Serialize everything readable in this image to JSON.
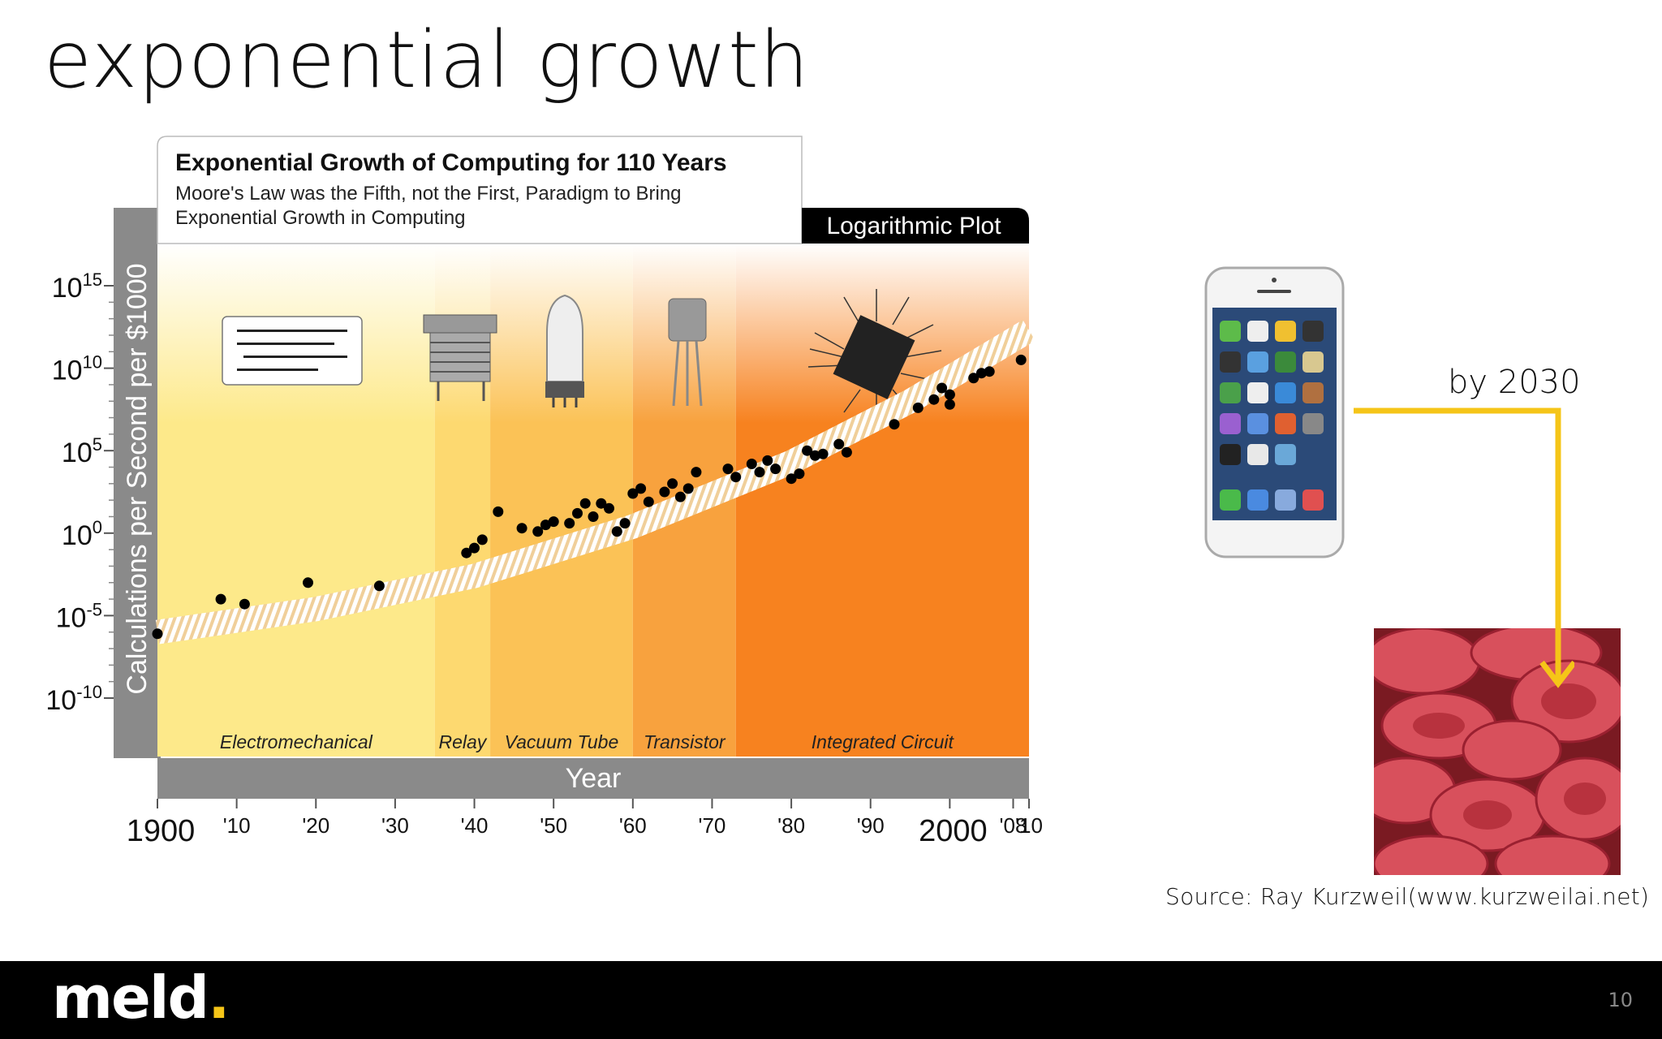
{
  "slide": {
    "title": "exponential growth",
    "page_number": "10",
    "logo": {
      "text": "meld",
      "dot": "."
    },
    "annotation": "by 2030",
    "source": "Source: Ray Kurzweil(www.kurzweilai.net)",
    "colors": {
      "accent": "#f5c518",
      "footer": "#000000",
      "axis_band": "#8a8a8a"
    }
  },
  "chart_data": {
    "type": "scatter",
    "title": "Exponential Growth of Computing for 110 Years",
    "subtitle_lines": [
      "Moore's Law was the Fifth, not the First, Paradigm to Bring",
      "Exponential Growth in Computing"
    ],
    "badge": "Logarithmic Plot",
    "ylabel": "Calculations per Second per $1000",
    "xlabel": "Year",
    "yscale": "log",
    "ylim_exponent": [
      -10,
      15
    ],
    "xlim": [
      1900,
      2010
    ],
    "y_ticks": [
      {
        "base": "10",
        "exp": "15",
        "v": 15
      },
      {
        "base": "10",
        "exp": "10",
        "v": 10
      },
      {
        "base": "10",
        "exp": "5",
        "v": 5
      },
      {
        "base": "10",
        "exp": "0",
        "v": 0
      },
      {
        "base": "10",
        "exp": "-5",
        "v": -5
      },
      {
        "base": "10",
        "exp": "-10",
        "v": -10
      }
    ],
    "x_ticks": [
      {
        "label": "1900",
        "v": 1900,
        "big": true
      },
      {
        "label": "'10",
        "v": 1910
      },
      {
        "label": "'20",
        "v": 1920
      },
      {
        "label": "'30",
        "v": 1930
      },
      {
        "label": "'40",
        "v": 1940
      },
      {
        "label": "'50",
        "v": 1950
      },
      {
        "label": "'60",
        "v": 1960
      },
      {
        "label": "'70",
        "v": 1970
      },
      {
        "label": "'80",
        "v": 1980
      },
      {
        "label": "'90",
        "v": 1990
      },
      {
        "label": "2000",
        "v": 2000,
        "big": true
      },
      {
        "label": "'08",
        "v": 2008
      },
      {
        "label": "'10",
        "v": 2010
      }
    ],
    "eras": [
      {
        "name": "Electromechanical",
        "start": 1900,
        "end": 1935,
        "color": "#fde98a"
      },
      {
        "name": "Relay",
        "start": 1935,
        "end": 1942,
        "color": "#fdd970"
      },
      {
        "name": "Vacuum Tube",
        "start": 1942,
        "end": 1960,
        "color": "#fbc256"
      },
      {
        "name": "Transistor",
        "start": 1960,
        "end": 1973,
        "color": "#f8a23e"
      },
      {
        "name": "Integrated Circuit",
        "start": 1973,
        "end": 2010,
        "color": "#f7821f"
      }
    ],
    "trend": [
      [
        1900,
        -6.0
      ],
      [
        1920,
        -4.6
      ],
      [
        1940,
        -2.6
      ],
      [
        1960,
        0.4
      ],
      [
        1980,
        4.3
      ],
      [
        1995,
        8.0
      ],
      [
        2010,
        12.3
      ]
    ],
    "points": [
      [
        1900,
        -6.1
      ],
      [
        1908,
        -4.0
      ],
      [
        1911,
        -4.3
      ],
      [
        1919,
        -3.0
      ],
      [
        1928,
        -3.2
      ],
      [
        1939,
        -1.2
      ],
      [
        1940,
        -0.9
      ],
      [
        1941,
        -0.4
      ],
      [
        1943,
        1.3
      ],
      [
        1946,
        0.3
      ],
      [
        1948,
        0.1
      ],
      [
        1949,
        0.5
      ],
      [
        1950,
        0.7
      ],
      [
        1952,
        0.6
      ],
      [
        1953,
        1.2
      ],
      [
        1955,
        1.0
      ],
      [
        1954,
        1.8
      ],
      [
        1956,
        1.8
      ],
      [
        1957,
        1.5
      ],
      [
        1958,
        0.1
      ],
      [
        1959,
        0.6
      ],
      [
        1960,
        2.4
      ],
      [
        1961,
        2.7
      ],
      [
        1962,
        1.9
      ],
      [
        1964,
        2.5
      ],
      [
        1965,
        3.0
      ],
      [
        1966,
        2.2
      ],
      [
        1967,
        2.7
      ],
      [
        1968,
        3.7
      ],
      [
        1972,
        3.9
      ],
      [
        1973,
        3.4
      ],
      [
        1975,
        4.2
      ],
      [
        1976,
        3.7
      ],
      [
        1977,
        4.4
      ],
      [
        1978,
        3.9
      ],
      [
        1980,
        3.3
      ],
      [
        1981,
        3.6
      ],
      [
        1982,
        5.0
      ],
      [
        1983,
        4.7
      ],
      [
        1984,
        4.8
      ],
      [
        1986,
        5.4
      ],
      [
        1987,
        4.9
      ],
      [
        1993,
        6.6
      ],
      [
        1996,
        7.6
      ],
      [
        1998,
        8.1
      ],
      [
        1999,
        8.8
      ],
      [
        2000,
        8.4
      ],
      [
        2000,
        7.8
      ],
      [
        2003,
        9.4
      ],
      [
        2004,
        9.7
      ],
      [
        2005,
        9.8
      ],
      [
        2009,
        10.5
      ]
    ]
  }
}
